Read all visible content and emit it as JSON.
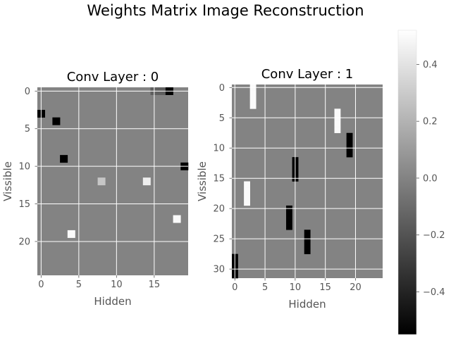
{
  "figure": {
    "title": "Weights Matrix Image Reconstruction"
  },
  "chart_data": [
    {
      "type": "heatmap",
      "title": "Conv Layer : 0",
      "xlabel": "Hidden",
      "ylabel": "Vissible",
      "n_cols": 20,
      "n_rows": 25,
      "x_ticks": [
        0,
        5,
        10,
        15
      ],
      "y_ticks": [
        0,
        5,
        10,
        15,
        20
      ],
      "grid": true,
      "colormap": "gray",
      "background_value": 0.0,
      "cells": [
        {
          "row": 0,
          "col": 15,
          "value": -0.15
        },
        {
          "row": 0,
          "col": 16,
          "value": -0.15
        },
        {
          "row": 0,
          "col": 17,
          "value": -0.55
        },
        {
          "row": 3,
          "col": 0,
          "value": -0.55
        },
        {
          "row": 4,
          "col": 2,
          "value": -0.55
        },
        {
          "row": 9,
          "col": 3,
          "value": -0.55
        },
        {
          "row": 10,
          "col": 19,
          "value": -0.55
        },
        {
          "row": 12,
          "col": 8,
          "value": 0.28
        },
        {
          "row": 12,
          "col": 14,
          "value": 0.45
        },
        {
          "row": 17,
          "col": 18,
          "value": 0.5
        },
        {
          "row": 19,
          "col": 4,
          "value": 0.5
        }
      ]
    },
    {
      "type": "heatmap",
      "title": "Conv Layer : 1",
      "xlabel": "Hidden",
      "ylabel": "Vissible",
      "n_cols": 25,
      "n_rows": 32,
      "x_ticks": [
        0,
        5,
        10,
        15,
        20
      ],
      "y_ticks": [
        0,
        5,
        10,
        15,
        20,
        25,
        30
      ],
      "grid": true,
      "colormap": "gray",
      "background_value": 0.0,
      "cells": [
        {
          "row": 0,
          "col": 3,
          "value": 0.5
        },
        {
          "row": 1,
          "col": 3,
          "value": 0.5
        },
        {
          "row": 2,
          "col": 3,
          "value": 0.5
        },
        {
          "row": 3,
          "col": 3,
          "value": 0.5
        },
        {
          "row": 4,
          "col": 17,
          "value": 0.5
        },
        {
          "row": 5,
          "col": 17,
          "value": 0.5
        },
        {
          "row": 6,
          "col": 17,
          "value": 0.5
        },
        {
          "row": 7,
          "col": 17,
          "value": 0.5
        },
        {
          "row": 8,
          "col": 19,
          "value": -0.55
        },
        {
          "row": 9,
          "col": 19,
          "value": -0.55
        },
        {
          "row": 10,
          "col": 19,
          "value": -0.55
        },
        {
          "row": 11,
          "col": 19,
          "value": -0.55
        },
        {
          "row": 12,
          "col": 10,
          "value": -0.55
        },
        {
          "row": 13,
          "col": 10,
          "value": -0.55
        },
        {
          "row": 14,
          "col": 10,
          "value": -0.55
        },
        {
          "row": 15,
          "col": 10,
          "value": -0.55
        },
        {
          "row": 16,
          "col": 2,
          "value": 0.5
        },
        {
          "row": 17,
          "col": 2,
          "value": 0.5
        },
        {
          "row": 18,
          "col": 2,
          "value": 0.5
        },
        {
          "row": 19,
          "col": 2,
          "value": 0.5
        },
        {
          "row": 20,
          "col": 9,
          "value": -0.55
        },
        {
          "row": 21,
          "col": 9,
          "value": -0.55
        },
        {
          "row": 22,
          "col": 9,
          "value": -0.55
        },
        {
          "row": 23,
          "col": 9,
          "value": -0.55
        },
        {
          "row": 24,
          "col": 12,
          "value": -0.55
        },
        {
          "row": 25,
          "col": 12,
          "value": -0.55
        },
        {
          "row": 26,
          "col": 12,
          "value": -0.55
        },
        {
          "row": 27,
          "col": 12,
          "value": -0.55
        },
        {
          "row": 28,
          "col": 0,
          "value": -0.55
        },
        {
          "row": 29,
          "col": 0,
          "value": -0.55
        },
        {
          "row": 30,
          "col": 0,
          "value": -0.55
        },
        {
          "row": 31,
          "col": 0,
          "value": -0.55
        }
      ]
    }
  ],
  "colorbar": {
    "colormap": "gray",
    "vmin": -0.55,
    "vmax": 0.52,
    "ticks": [
      0.4,
      0.2,
      0.0,
      -0.2,
      -0.4
    ],
    "tick_labels": [
      "0.4",
      "0.2",
      "0.0",
      "−0.2",
      "−0.4"
    ]
  },
  "colors": {
    "grid": "#ffffff",
    "tick_text": "#555555",
    "label_text": "#555555",
    "title_text": "#000000"
  }
}
